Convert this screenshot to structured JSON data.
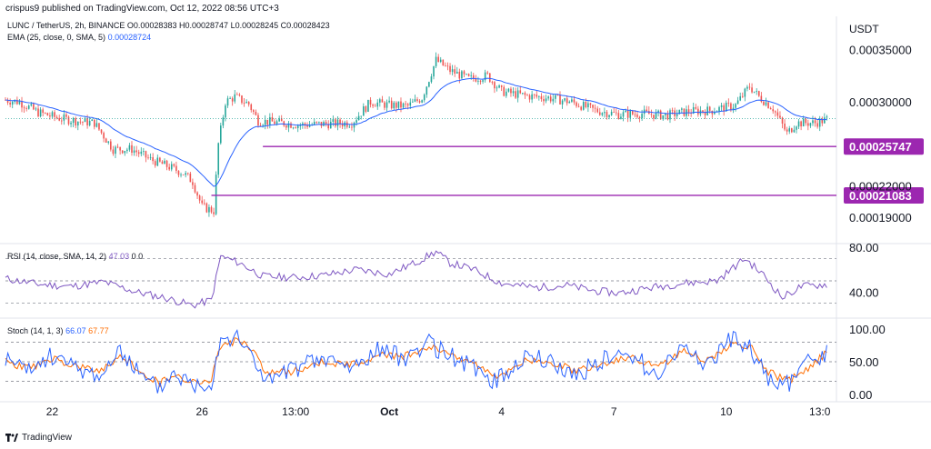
{
  "header": {
    "publisher": "crispus9 published on TradingView.com, Oct 12, 2022 08:56 UTC+3",
    "symbol_line": "LUNC / TetherUS, 2h, BINANCE",
    "ohlc": [
      "O0.00028383",
      "H0.00028747",
      "L0.00028245",
      "C0.00028423"
    ],
    "ema_label": "EMA (25, close, 0, SMA, 5)",
    "ema_value": "0.00028724",
    "rsi_label": "RSI (14, close, SMA, 14, 2)",
    "rsi_values": [
      "47.03",
      "0",
      "0"
    ],
    "stoch_label": "Stoch (14, 1, 3)",
    "stoch_k": "66.07",
    "stoch_d": "67.77"
  },
  "footer": {
    "brand": "TradingView"
  },
  "colors": {
    "up": "#26a69a",
    "down": "#ef5350",
    "ema": "#2962ff",
    "hline": "#9c27b0",
    "rsi": "#7e57c2",
    "stoch_k": "#2962ff",
    "stoch_d": "#ff6d00",
    "label_bg": "#9c27b0"
  },
  "chart_data": [
    {
      "type": "candlestick",
      "title": "LUNC / TetherUS, 2h, BINANCE",
      "axis_unit": "USDT",
      "ylim": [
        0.00017,
        0.00038
      ],
      "y_ticks": [
        {
          "value": 0.00035,
          "label": "0.00035000"
        },
        {
          "value": 0.0003,
          "label": "0.00030000"
        },
        {
          "value": 0.00022,
          "label": "0.00022000"
        },
        {
          "value": 0.00019,
          "label": "0.00019000"
        }
      ],
      "x_ticks": [
        {
          "index": 20,
          "label": "22"
        },
        {
          "index": 84,
          "label": "26"
        },
        {
          "index": 124,
          "label": "13:00"
        },
        {
          "index": 164,
          "label": "Oct"
        },
        {
          "index": 212,
          "label": "4"
        },
        {
          "index": 260,
          "label": "7"
        },
        {
          "index": 308,
          "label": "10"
        },
        {
          "index": 348,
          "label": "13:0"
        }
      ],
      "bar_count": 352,
      "last_price": 0.00028423,
      "price_path": [
        [
          0,
          0.000302
        ],
        [
          6,
          0.0003
        ],
        [
          14,
          0.00029
        ],
        [
          22,
          0.000285
        ],
        [
          30,
          0.000282
        ],
        [
          38,
          0.00028
        ],
        [
          46,
          0.000255
        ],
        [
          54,
          0.000255
        ],
        [
          62,
          0.000245
        ],
        [
          70,
          0.000238
        ],
        [
          76,
          0.000232
        ],
        [
          80,
          0.000224
        ],
        [
          84,
          0.0002
        ],
        [
          89,
          0.000196
        ],
        [
          91,
          0.00026
        ],
        [
          94,
          0.0003
        ],
        [
          98,
          0.000305
        ],
        [
          104,
          0.000298
        ],
        [
          108,
          0.000282
        ],
        [
          118,
          0.00028
        ],
        [
          126,
          0.000278
        ],
        [
          136,
          0.000279
        ],
        [
          148,
          0.00028
        ],
        [
          156,
          0.0003
        ],
        [
          164,
          0.000297
        ],
        [
          172,
          0.000296
        ],
        [
          178,
          0.000304
        ],
        [
          184,
          0.00034
        ],
        [
          190,
          0.00033
        ],
        [
          198,
          0.000322
        ],
        [
          206,
          0.000325
        ],
        [
          212,
          0.00031
        ],
        [
          222,
          0.000306
        ],
        [
          232,
          0.000304
        ],
        [
          242,
          0.0003
        ],
        [
          252,
          0.000292
        ],
        [
          262,
          0.000288
        ],
        [
          272,
          0.000289
        ],
        [
          282,
          0.000287
        ],
        [
          292,
          0.000291
        ],
        [
          302,
          0.000292
        ],
        [
          312,
          0.000297
        ],
        [
          318,
          0.000315
        ],
        [
          322,
          0.000305
        ],
        [
          328,
          0.000294
        ],
        [
          334,
          0.00027
        ],
        [
          338,
          0.00028
        ],
        [
          346,
          0.00028
        ],
        [
          352,
          0.000284
        ]
      ],
      "horizontal_levels": [
        {
          "value": 0.00025747,
          "label": "0.00025747",
          "from_index": 110
        },
        {
          "value": 0.00021083,
          "label": "0.00021083",
          "from_index": 88
        }
      ]
    },
    {
      "type": "line",
      "title": "RSI (14, close, SMA, 14, 2)",
      "ylim": [
        20,
        80
      ],
      "y_ticks": [
        {
          "value": 80,
          "label": "80.00"
        },
        {
          "value": 40,
          "label": "40.00"
        }
      ],
      "bands": [
        70,
        50,
        30
      ],
      "series_path": [
        [
          0,
          52
        ],
        [
          14,
          47
        ],
        [
          28,
          45
        ],
        [
          42,
          49
        ],
        [
          56,
          40
        ],
        [
          68,
          35
        ],
        [
          80,
          28
        ],
        [
          88,
          33
        ],
        [
          92,
          72
        ],
        [
          100,
          66
        ],
        [
          110,
          54
        ],
        [
          124,
          53
        ],
        [
          136,
          55
        ],
        [
          150,
          60
        ],
        [
          164,
          56
        ],
        [
          176,
          67
        ],
        [
          184,
          76
        ],
        [
          190,
          66
        ],
        [
          200,
          60
        ],
        [
          212,
          48
        ],
        [
          226,
          44
        ],
        [
          240,
          46
        ],
        [
          252,
          41
        ],
        [
          262,
          39
        ],
        [
          276,
          44
        ],
        [
          290,
          48
        ],
        [
          304,
          50
        ],
        [
          316,
          70
        ],
        [
          324,
          55
        ],
        [
          332,
          35
        ],
        [
          340,
          45
        ],
        [
          352,
          47
        ]
      ]
    },
    {
      "type": "line",
      "title": "Stoch (14, 1, 3)",
      "ylim": [
        0,
        100
      ],
      "y_ticks": [
        {
          "value": 100,
          "label": "100.00"
        },
        {
          "value": 50,
          "label": "50.00"
        },
        {
          "value": 0,
          "label": "0.00"
        }
      ],
      "bands": [
        80,
        50,
        20
      ],
      "series": [
        {
          "name": "66.07",
          "key": "k"
        },
        {
          "name": "67.77",
          "key": "d"
        }
      ],
      "k_path": [
        [
          0,
          55
        ],
        [
          10,
          35
        ],
        [
          20,
          60
        ],
        [
          30,
          40
        ],
        [
          40,
          30
        ],
        [
          50,
          65
        ],
        [
          60,
          20
        ],
        [
          66,
          10
        ],
        [
          72,
          35
        ],
        [
          80,
          15
        ],
        [
          88,
          20
        ],
        [
          92,
          90
        ],
        [
          100,
          85
        ],
        [
          106,
          55
        ],
        [
          112,
          20
        ],
        [
          124,
          40
        ],
        [
          136,
          55
        ],
        [
          148,
          40
        ],
        [
          160,
          70
        ],
        [
          170,
          55
        ],
        [
          180,
          80
        ],
        [
          190,
          60
        ],
        [
          200,
          40
        ],
        [
          210,
          20
        ],
        [
          222,
          60
        ],
        [
          232,
          50
        ],
        [
          244,
          30
        ],
        [
          256,
          55
        ],
        [
          268,
          60
        ],
        [
          278,
          30
        ],
        [
          290,
          75
        ],
        [
          300,
          45
        ],
        [
          310,
          85
        ],
        [
          318,
          70
        ],
        [
          326,
          20
        ],
        [
          334,
          15
        ],
        [
          342,
          45
        ],
        [
          352,
          66
        ]
      ],
      "d_path": [
        [
          0,
          50
        ],
        [
          10,
          40
        ],
        [
          20,
          55
        ],
        [
          30,
          42
        ],
        [
          40,
          35
        ],
        [
          50,
          58
        ],
        [
          60,
          28
        ],
        [
          66,
          18
        ],
        [
          72,
          28
        ],
        [
          80,
          20
        ],
        [
          88,
          24
        ],
        [
          92,
          75
        ],
        [
          100,
          84
        ],
        [
          106,
          65
        ],
        [
          112,
          32
        ],
        [
          124,
          36
        ],
        [
          136,
          50
        ],
        [
          148,
          45
        ],
        [
          160,
          62
        ],
        [
          170,
          58
        ],
        [
          180,
          72
        ],
        [
          190,
          64
        ],
        [
          200,
          46
        ],
        [
          210,
          28
        ],
        [
          222,
          50
        ],
        [
          232,
          52
        ],
        [
          244,
          36
        ],
        [
          256,
          48
        ],
        [
          268,
          58
        ],
        [
          278,
          40
        ],
        [
          290,
          66
        ],
        [
          300,
          52
        ],
        [
          310,
          76
        ],
        [
          318,
          74
        ],
        [
          326,
          35
        ],
        [
          334,
          20
        ],
        [
          342,
          38
        ],
        [
          352,
          68
        ]
      ]
    }
  ]
}
